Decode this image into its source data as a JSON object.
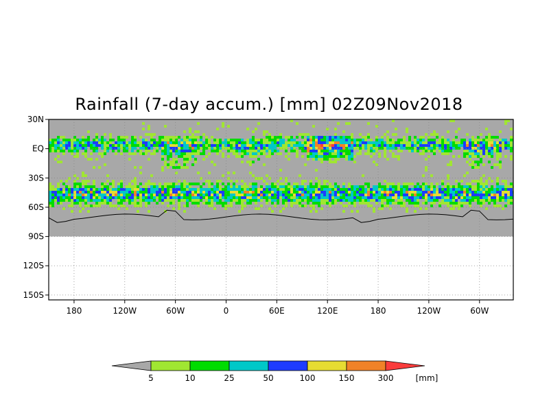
{
  "chart_data": {
    "type": "heatmap",
    "title": "Rainfall (7-day accum.) [mm] 02Z09Nov2018",
    "y_ticks": [
      "30N",
      "EQ",
      "30S",
      "60S",
      "90S",
      "120S",
      "150S"
    ],
    "y_values": [
      30,
      0,
      -30,
      -60,
      -90,
      -120,
      -150
    ],
    "x_ticks": [
      "180",
      "120W",
      "60W",
      "0",
      "60E",
      "120E",
      "180",
      "120W",
      "60W"
    ],
    "x_values": [
      -180,
      -120,
      -60,
      0,
      60,
      120,
      180,
      240,
      300
    ],
    "xlim": [
      -210,
      340
    ],
    "ylim": [
      -155,
      30
    ],
    "data_extent_lat": [
      -90,
      30
    ],
    "grid": "dotted",
    "background_color": "#a8a8a8",
    "legend": {
      "position": "bottom",
      "labels": [
        "5",
        "10",
        "25",
        "50",
        "100",
        "150",
        "300"
      ],
      "unit": "[mm]",
      "colors": [
        "#a8a8a8",
        "#a0e632",
        "#00dc00",
        "#00c8c8",
        "#1e3cff",
        "#e6dc32",
        "#f08228",
        "#fa3c3c"
      ]
    }
  }
}
